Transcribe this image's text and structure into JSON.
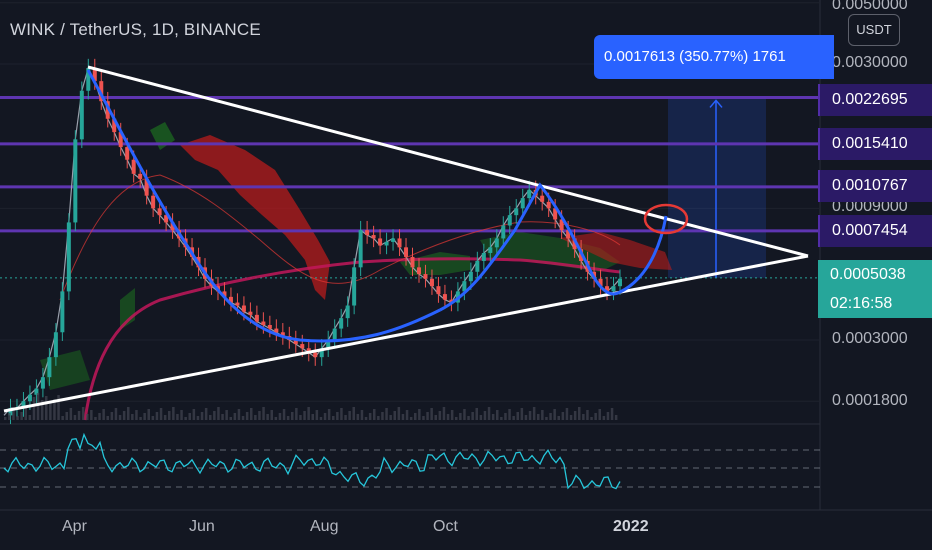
{
  "header": {
    "title": "WINK / TetherUS, 1D, BINANCE",
    "currency": "USDT"
  },
  "measure_label": "0.0017613 (350.77%) 1761",
  "price_tags": [
    "0.0022695",
    "0.0015410",
    "0.0010767",
    "0.0007454"
  ],
  "current_price": {
    "price": "0.0005038",
    "countdown": "02:16:58"
  },
  "price_axis_labels": [
    "0.0050000",
    "0.0030000",
    "0.0009000",
    "0.0003000",
    "0.0001800"
  ],
  "time_axis_labels": [
    "Apr",
    "Jun",
    "Aug",
    "Oct",
    "2022"
  ],
  "colors": {
    "background": "#131722",
    "level_lines": "#5e35b1",
    "triangle": "#ffffff",
    "pattern_curve": "#2962ff",
    "ma_line": "#c2185b",
    "cloud_bull": "#1b5e20",
    "cloud_bear": "#b71c1c",
    "rsi": "#26c6da",
    "current_price_tag": "#26a69a"
  },
  "chart_data": {
    "type": "line",
    "title": "WINK / TetherUS, 1D, BINANCE",
    "y_scale": "log",
    "ylim": [
      0.00013,
      0.0055
    ],
    "x_ticks": [
      "Apr",
      "Jun",
      "Aug",
      "Oct",
      "2022"
    ],
    "horizontal_levels": [
      0.0022695,
      0.001541,
      0.0010767,
      0.0007454
    ],
    "current_price": 0.0005038,
    "measure": {
      "change": 0.0017613,
      "percent": 350.77
    },
    "series": [
      {
        "values": [
          0.00016,
          0.00017,
          0.00017,
          0.00018,
          0.00019,
          0.0002,
          0.00022,
          0.00026,
          0.00032,
          0.00045,
          0.0008,
          0.0016,
          0.0024,
          0.0029,
          0.0026,
          0.0022,
          0.0019,
          0.0017,
          0.0015,
          0.00135,
          0.0012,
          0.00115,
          0.001,
          0.0009,
          0.00085,
          0.0008,
          0.00075,
          0.0007,
          0.00065,
          0.0006,
          0.00055,
          0.0005,
          0.00047,
          0.00045,
          0.00043,
          0.00041,
          0.0004,
          0.00038,
          0.00037,
          0.00035,
          0.00034,
          0.00033,
          0.00032,
          0.00031,
          0.0003,
          0.00029,
          0.00028,
          0.00027,
          0.00026,
          0.00028,
          0.0003,
          0.00033,
          0.00036,
          0.0004,
          0.00055,
          0.00075,
          0.00072,
          0.0007,
          0.00066,
          0.00068,
          0.0007,
          0.00065,
          0.0006,
          0.00055,
          0.00052,
          0.0005,
          0.00047,
          0.00044,
          0.00042,
          0.00041,
          0.00045,
          0.00049,
          0.00053,
          0.00058,
          0.00062,
          0.00065,
          0.0007,
          0.00078,
          0.00085,
          0.0009,
          0.00098,
          0.00105,
          0.001,
          0.00095,
          0.0009,
          0.00082,
          0.00075,
          0.0007,
          0.00064,
          0.00058,
          0.00053,
          0.0005,
          0.00047,
          0.00045,
          0.00047,
          0.0005
        ]
      }
    ]
  }
}
